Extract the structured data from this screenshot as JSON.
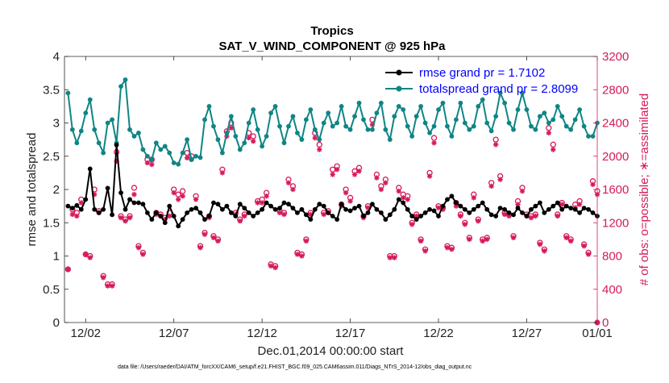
{
  "chart_data": {
    "type": "line",
    "title_line1": "Tropics",
    "title_line2": "SAT_V_WIND_COMPONENT @ 925 hPa",
    "xlabel": "Dec.01,2014 00:00:00 start",
    "ylabel_left": "rmse and totalspread",
    "ylabel_right": "# of obs: o=possible; ∗=assimilated",
    "footnote": "data file: /Users/raeder/DAI/ATM_forcXX/CAM6_setup/f.e21.FHIST_BGC.f09_025.CAM6assim.011/Diags_NTrS_2014-12/obs_diag_output.nc",
    "xlim": [
      0.8,
      31.0
    ],
    "ylim_left": [
      0,
      4
    ],
    "ylim_right": [
      0,
      3200
    ],
    "x_ticks": [
      2,
      7,
      12,
      17,
      22,
      27,
      32
    ],
    "x_tick_labels": [
      "12/02",
      "12/07",
      "12/12",
      "12/17",
      "12/22",
      "12/27",
      "01/01"
    ],
    "y_left_ticks": [
      "0",
      "0.5",
      "1",
      "1.5",
      "2",
      "2.5",
      "3",
      "3.5",
      "4"
    ],
    "y_right_ticks": [
      "0",
      "400",
      "800",
      "1200",
      "1600",
      "2000",
      "2400",
      "2800",
      "3200"
    ],
    "legend": [
      {
        "label": "rmse grand pr = 1.7102",
        "color": "#000000"
      },
      {
        "label": "totalspread grand pr = 2.8099",
        "color": "#0f8585"
      }
    ],
    "colors": {
      "rmse": "#000000",
      "spread": "#0f8585",
      "obs": "#d6195b"
    },
    "series": [
      {
        "name": "rmse",
        "x_start": 1.0,
        "x_step": 0.25,
        "values": [
          1.75,
          1.72,
          1.76,
          1.7,
          1.85,
          2.31,
          1.7,
          1.65,
          1.7,
          2.02,
          1.62,
          2.67,
          1.95,
          1.7,
          1.85,
          1.8,
          1.8,
          1.78,
          1.65,
          1.55,
          1.65,
          1.6,
          1.5,
          1.75,
          1.6,
          1.45,
          1.55,
          1.65,
          1.7,
          1.72,
          1.65,
          1.55,
          1.6,
          1.8,
          1.78,
          1.7,
          1.75,
          1.65,
          1.6,
          1.78,
          1.72,
          1.65,
          1.6,
          1.65,
          1.7,
          1.8,
          1.75,
          1.7,
          1.72,
          1.8,
          1.78,
          1.72,
          1.65,
          1.7,
          1.62,
          1.55,
          1.7,
          1.78,
          1.75,
          1.65,
          1.6,
          1.55,
          1.78,
          1.7,
          1.68,
          1.72,
          1.75,
          1.6,
          1.65,
          1.78,
          1.7,
          1.65,
          1.55,
          1.62,
          1.7,
          1.85,
          1.8,
          1.7,
          1.6,
          1.55,
          1.6,
          1.65,
          1.7,
          1.68,
          1.6,
          1.75,
          1.85,
          1.9,
          1.8,
          1.75,
          1.7,
          1.65,
          1.7,
          1.75,
          1.8,
          1.7,
          1.62,
          1.6,
          1.72,
          1.7,
          1.65,
          1.62,
          1.72,
          1.65,
          1.6,
          1.7,
          1.75,
          1.8,
          1.65,
          1.7,
          1.75,
          1.8,
          1.7,
          1.75,
          1.72,
          1.7,
          1.65,
          1.72,
          1.7,
          1.65,
          1.6,
          1.7,
          1.75,
          1.72,
          1.7,
          1.72,
          1.7,
          1.65,
          1.6,
          1.6,
          1.55,
          1.58,
          1.5,
          1.55,
          1.6,
          1.55,
          1.5,
          1.45,
          1.55,
          1.6,
          1.65,
          1.55,
          1.5,
          1.45,
          1.4,
          1.42,
          1.55,
          1.5,
          1.45,
          1.65,
          1.7,
          2.15,
          1.6,
          1.55,
          1.75,
          1.6,
          1.45,
          1.55,
          1.65,
          1.68,
          1.65,
          1.72,
          1.65,
          1.8,
          2.05,
          1.7,
          1.6,
          1.68,
          1.7,
          1.85,
          2.3,
          1.8,
          1.65,
          1.75,
          1.7,
          1.78,
          2.08,
          1.85,
          1.75,
          1.65,
          1.55
        ]
      },
      {
        "name": "totalspread",
        "x_start": 1.0,
        "x_step": 0.25,
        "values": [
          3.45,
          2.9,
          2.7,
          2.88,
          3.15,
          3.35,
          2.9,
          2.7,
          2.55,
          3.0,
          3.05,
          2.7,
          3.55,
          3.65,
          2.9,
          2.8,
          2.85,
          2.6,
          2.5,
          2.45,
          2.7,
          2.6,
          2.65,
          2.55,
          2.4,
          2.38,
          2.55,
          2.75,
          2.45,
          2.5,
          2.48,
          3.05,
          3.25,
          2.95,
          2.75,
          2.55,
          2.85,
          3.1,
          2.8,
          2.6,
          2.7,
          3.0,
          3.2,
          2.9,
          2.65,
          2.8,
          3.15,
          3.25,
          2.95,
          2.7,
          2.95,
          3.1,
          2.85,
          2.75,
          3.05,
          3.2,
          2.9,
          2.75,
          3.0,
          3.15,
          2.95,
          3.0,
          3.25,
          2.95,
          2.9,
          3.1,
          3.3,
          3.05,
          2.9,
          2.9,
          3.15,
          3.3,
          2.9,
          2.75,
          3.1,
          3.25,
          3.2,
          2.95,
          2.8,
          3.1,
          3.25,
          3.0,
          2.85,
          2.95,
          3.2,
          3.3,
          2.95,
          2.8,
          3.05,
          3.3,
          3.0,
          2.9,
          2.95,
          3.25,
          3.35,
          3.0,
          2.88,
          3.1,
          3.45,
          3.3,
          3.0,
          2.9,
          3.2,
          3.45,
          3.2,
          2.95,
          2.9,
          3.1,
          3.15,
          3.0,
          3.05,
          3.25,
          3.1,
          2.95,
          2.9,
          3.05,
          3.2,
          2.95,
          2.8,
          2.8,
          3.0,
          2.95,
          2.7,
          2.75,
          3.0,
          3.05,
          2.9,
          2.8,
          3.05,
          2.9,
          2.75,
          2.65,
          2.8,
          2.6,
          2.5,
          2.7,
          2.85,
          2.78,
          2.7,
          2.55,
          2.8,
          2.85,
          2.7,
          2.58,
          2.55,
          2.62,
          2.6,
          2.48,
          2.55,
          2.7,
          2.62,
          2.55,
          2.65,
          2.8,
          2.85,
          2.65,
          2.7,
          2.6,
          2.65,
          2.75,
          2.68,
          2.7,
          2.6,
          2.75,
          2.85,
          2.65,
          2.75,
          2.88,
          2.85,
          2.8,
          2.95,
          3.05,
          2.85,
          2.7,
          2.75,
          2.74
        ]
      }
    ],
    "obs_possible": {
      "x_start": 1.0,
      "x_step": 0.25,
      "values": [
        640,
        1360,
        1320,
        1480,
        820,
        800,
        1600,
        1340,
        560,
        460,
        460,
        2050,
        1280,
        1240,
        1280,
        1620,
        920,
        840,
        1960,
        1960,
        1320,
        1300,
        1260,
        1320,
        1600,
        1540,
        1580,
        2040,
        2000,
        1520,
        920,
        1080,
        1280,
        1040,
        1000,
        1840,
        2300,
        2400,
        1320,
        1240,
        1300,
        2280,
        2240,
        1460,
        1480,
        1560,
        700,
        680,
        1340,
        1320,
        1720,
        1640,
        840,
        820,
        1000,
        1320,
        2280,
        2140,
        1320,
        1340,
        1840,
        1880,
        1420,
        1600,
        1500,
        1820,
        1860,
        1280,
        1400,
        2440,
        1780,
        1640,
        1720,
        800,
        800,
        1620,
        1540,
        1520,
        1200,
        1300,
        1000,
        880,
        1800,
        2220,
        1400,
        1380,
        920,
        900,
        1440,
        1300,
        1200,
        1020,
        1540,
        1240,
        1000,
        1020,
        1680,
        2200,
        1760,
        1320,
        1300,
        1040,
        1460,
        1620,
        1300,
        1280,
        1300,
        960,
        880,
        2340,
        2140,
        1300,
        1440,
        1040,
        1000,
        1420,
        1460,
        940,
        840,
        1700,
        1580,
        1420,
        1320,
        1260,
        1740,
        1600,
        1360,
        2160,
        2500,
        1800,
        2040,
        2860,
        2860,
        1860,
        1720,
        2220,
        2260,
        2200,
        1480,
        1320,
        2080,
        2020,
        1420,
        1500,
        1000,
        980,
        1940,
        1940,
        2200,
        1320,
        1300,
        2140,
        2200,
        1260,
        1920,
        1420,
        1180,
        1820,
        1720,
        1500,
        1760,
        2000,
        2060,
        1320,
        1480,
        1920,
        2120,
        1880,
        1560,
        2420,
        2120,
        2020,
        1960,
        2100,
        1820,
        1920,
        1920,
        1160
      ]
    },
    "obs_assimilated": {
      "x_start": 1.0,
      "x_step": 0.25,
      "values": [
        640,
        1300,
        1280,
        1440,
        820,
        780,
        1540,
        1320,
        540,
        440,
        440,
        1940,
        1260,
        1220,
        1260,
        1540,
        900,
        820,
        1920,
        1900,
        1300,
        1280,
        1240,
        1280,
        1560,
        1480,
        1520,
        1980,
        1960,
        1480,
        900,
        1060,
        1260,
        1020,
        980,
        1800,
        2240,
        2340,
        1300,
        1220,
        1280,
        2220,
        2180,
        1440,
        1440,
        1520,
        680,
        660,
        1320,
        1300,
        1680,
        1600,
        820,
        800,
        980,
        1300,
        2220,
        2080,
        1300,
        1320,
        1780,
        1840,
        1400,
        1560,
        1460,
        1780,
        1820,
        1260,
        1380,
        2380,
        1740,
        1600,
        1680,
        780,
        780,
        1580,
        1500,
        1480,
        1180,
        1280,
        980,
        860,
        1760,
        2160,
        1380,
        1360,
        900,
        880,
        1400,
        1280,
        1180,
        1000,
        1500,
        1220,
        980,
        1000,
        1640,
        2140,
        1720,
        1300,
        1280,
        1020,
        1420,
        1580,
        1280,
        1260,
        1280,
        940,
        860,
        2280,
        2080,
        1280,
        1420,
        1020,
        980,
        1380,
        1420,
        920,
        820,
        1660,
        1540,
        1380,
        1300,
        1240,
        1700,
        1560,
        1340,
        2100,
        2440,
        1760,
        2000,
        2800,
        2800,
        1820,
        1680,
        2180,
        2220,
        2160,
        1440,
        1300,
        2040,
        1980,
        1400,
        1460,
        980,
        960,
        1900,
        1900,
        2160,
        1300,
        1280,
        2100,
        2160,
        1240,
        1880,
        1400,
        1160,
        1780,
        1680,
        1460,
        1720,
        1960,
        2020,
        1300,
        1440,
        1880,
        2080,
        1840,
        1520,
        2360,
        2080,
        1980,
        1920,
        2060,
        1780,
        1880,
        1880,
        1120
      ]
    }
  }
}
